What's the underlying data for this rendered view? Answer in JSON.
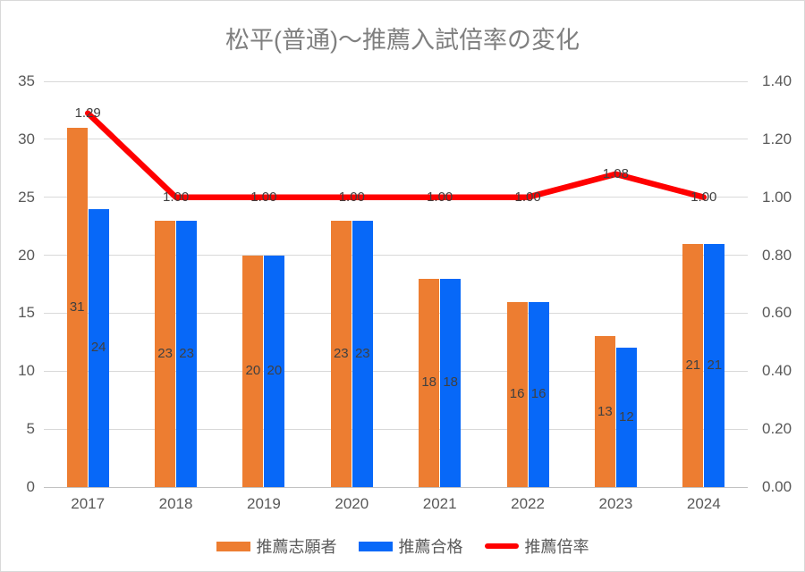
{
  "chart_data": {
    "type": "combo",
    "title": "松平(普通)～推薦入試倍率の変化",
    "categories": [
      "2017",
      "2018",
      "2019",
      "2020",
      "2021",
      "2022",
      "2023",
      "2024"
    ],
    "series": [
      {
        "name": "推薦志願者",
        "chart_type": "bar",
        "color": "#ED7D31",
        "axis": "left",
        "values": [
          31,
          23,
          20,
          23,
          18,
          16,
          13,
          21
        ],
        "data_labels": [
          "31",
          "23",
          "20",
          "23",
          "18",
          "16",
          "13",
          "21"
        ]
      },
      {
        "name": "推薦合格",
        "chart_type": "bar",
        "color": "#0768F8",
        "axis": "left",
        "values": [
          24,
          23,
          20,
          23,
          18,
          16,
          12,
          21
        ],
        "data_labels": [
          "24",
          "23",
          "20",
          "23",
          "18",
          "16",
          "12",
          "21"
        ]
      },
      {
        "name": "推薦倍率",
        "chart_type": "line",
        "color": "#FF0000",
        "axis": "right",
        "values": [
          1.29,
          1.0,
          1.0,
          1.0,
          1.0,
          1.0,
          1.08,
          1.0
        ],
        "data_labels": [
          "1.29",
          "1.00",
          "1.00",
          "1.00",
          "1.00",
          "1.00",
          "1.08",
          "1.00"
        ]
      }
    ],
    "left_axis": {
      "min": 0,
      "max": 35,
      "step": 5,
      "ticks": [
        "0",
        "5",
        "10",
        "15",
        "20",
        "25",
        "30",
        "35"
      ]
    },
    "right_axis": {
      "min": 0,
      "max": 1.4,
      "step": 0.2,
      "ticks": [
        "0.00",
        "0.20",
        "0.40",
        "0.60",
        "0.80",
        "1.00",
        "1.20",
        "1.40"
      ]
    },
    "legend": {
      "position": "bottom",
      "entries": [
        "推薦志願者",
        "推薦合格",
        "推薦倍率"
      ]
    },
    "grid": true
  }
}
